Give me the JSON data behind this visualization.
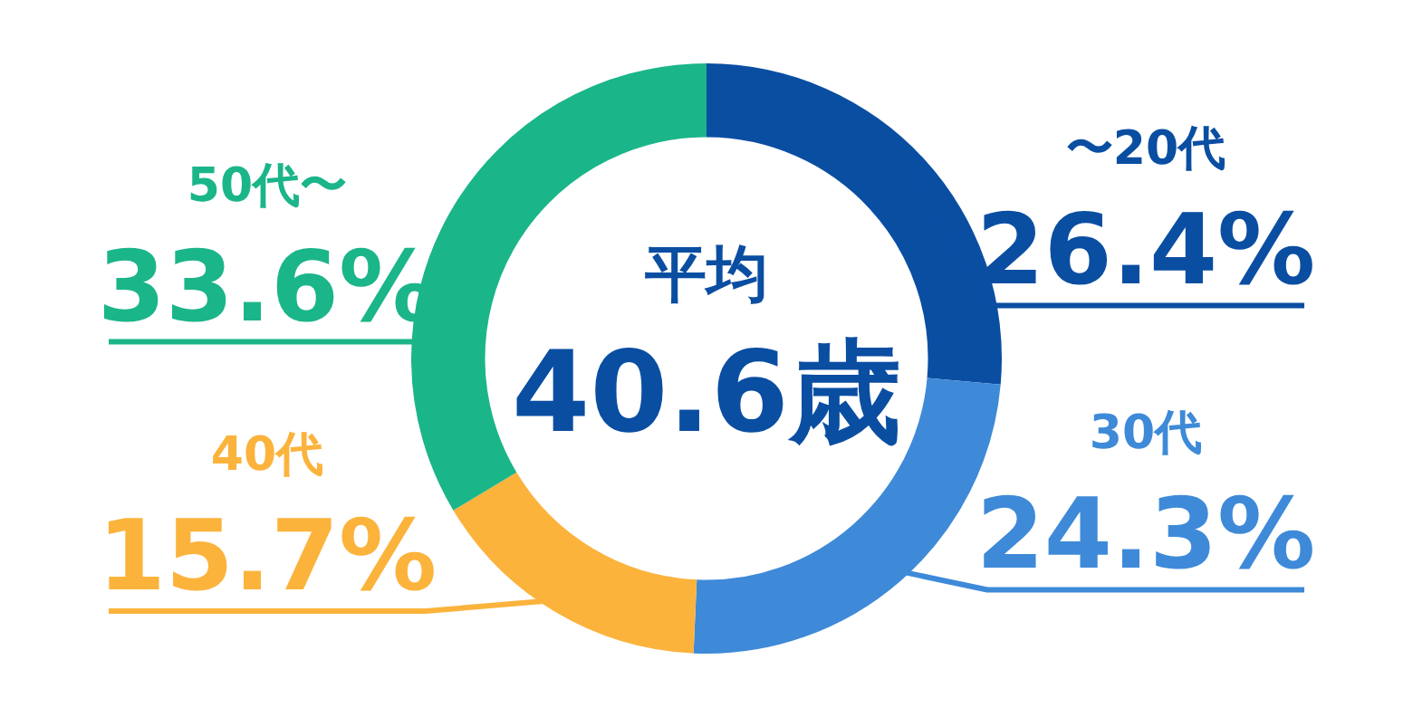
{
  "chart_data": {
    "type": "donut",
    "categories": [
      "〜20代",
      "30代",
      "40代",
      "50代〜"
    ],
    "values": [
      26.4,
      24.3,
      15.7,
      33.6
    ],
    "colors": [
      "#0a4ea2",
      "#3e8ad8",
      "#fbb33c",
      "#1bb58a"
    ],
    "value_labels": [
      "26.4%",
      "24.3%",
      "15.7%",
      "33.6%"
    ],
    "annotations": [
      "平均",
      "40.6歳"
    ],
    "legend": false
  }
}
